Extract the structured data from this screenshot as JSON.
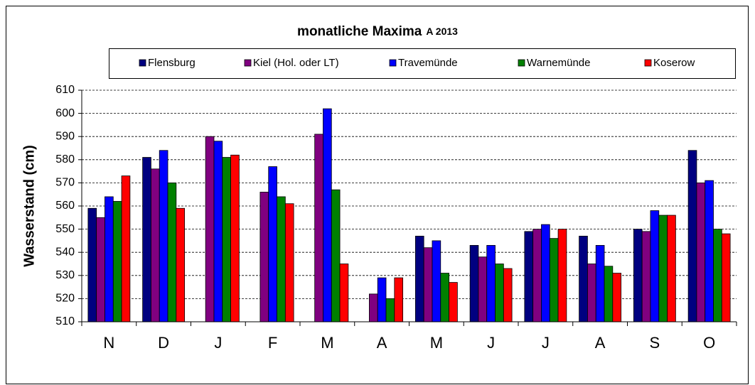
{
  "chart_data": {
    "type": "bar",
    "title": "monatliche Maxima",
    "subtitle": "A 2013",
    "y_label": "Wasserstand (cm)",
    "categories": [
      "N",
      "D",
      "J",
      "F",
      "M",
      "A",
      "M",
      "J",
      "J",
      "A",
      "S",
      "O"
    ],
    "series": [
      {
        "name": "Flensburg",
        "color": "#000080",
        "values": [
          559,
          581,
          null,
          null,
          null,
          null,
          547,
          543,
          549,
          547,
          550,
          584
        ]
      },
      {
        "name": "Kiel (Hol. oder LT)",
        "color": "#800080",
        "values": [
          555,
          576,
          590,
          566,
          591,
          522,
          542,
          538,
          550,
          535,
          549,
          570
        ]
      },
      {
        "name": "Travemünde",
        "color": "#0000ff",
        "values": [
          564,
          584,
          588,
          577,
          602,
          529,
          545,
          543,
          552,
          543,
          558,
          571
        ]
      },
      {
        "name": "Warnemünde",
        "color": "#008000",
        "values": [
          562,
          570,
          581,
          564,
          567,
          520,
          531,
          535,
          546,
          534,
          556,
          550
        ]
      },
      {
        "name": "Koserow",
        "color": "#ff0000",
        "values": [
          573,
          559,
          582,
          561,
          535,
          529,
          527,
          533,
          550,
          531,
          556,
          548
        ]
      }
    ],
    "ylim": [
      510,
      610
    ],
    "yticks": [
      510,
      520,
      530,
      540,
      550,
      560,
      570,
      580,
      590,
      600,
      610
    ],
    "grid": true,
    "legend": "top"
  }
}
